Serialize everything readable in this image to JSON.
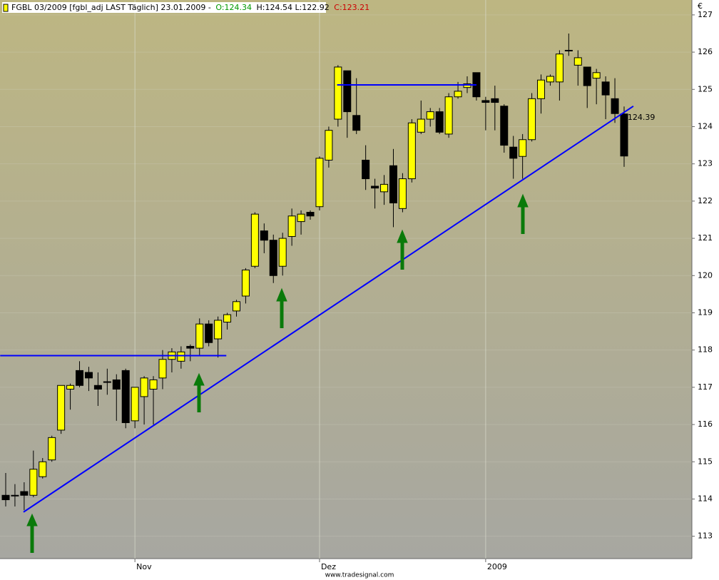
{
  "chart_data": {
    "type": "candlestick",
    "title": "FGBL 03/2009 [fgbl_adj LAST Täglich] 23.01.2009 -",
    "title_open": "O:124.34",
    "title_high_low": "H:124.54 L:122.92",
    "title_close": "C:123.21",
    "currency": "€",
    "footer": "www.tradesignal.com",
    "annotation": "124.39",
    "categories": [
      null,
      null,
      null,
      null,
      null,
      null,
      null,
      null,
      null,
      null,
      null,
      null,
      null,
      null,
      "Nov",
      null,
      null,
      null,
      null,
      null,
      null,
      null,
      null,
      null,
      null,
      null,
      null,
      null,
      null,
      null,
      null,
      null,
      null,
      null,
      "Dez",
      null,
      null,
      null,
      null,
      null,
      null,
      null,
      null,
      null,
      null,
      null,
      null,
      null,
      null,
      null,
      null,
      null,
      "2009",
      null,
      null,
      null,
      null,
      null,
      null,
      null,
      null,
      null,
      null,
      null,
      null,
      null,
      null,
      null
    ],
    "series": [
      {
        "up_color": "#ffff00",
        "down_color": "#000000",
        "open": [
          114.1,
          114.1,
          114.2,
          114.1,
          114.6,
          115.05,
          115.85,
          116.95,
          117.45,
          117.4,
          117.05,
          117.15,
          117.2,
          117.45,
          116.1,
          116.75,
          116.95,
          117.25,
          117.75,
          117.7,
          118.1,
          118.05,
          118.7,
          118.3,
          118.75,
          119.05,
          119.45,
          120.25,
          121.2,
          120.95,
          120.25,
          121.05,
          121.45,
          121.7,
          121.85,
          123.1,
          124.2,
          125.5,
          124.3,
          123.1,
          122.4,
          122.25,
          122.95,
          121.8,
          122.6,
          123.85,
          124.2,
          124.4,
          123.8,
          124.8,
          125.05,
          125.45,
          124.7,
          124.75,
          124.55,
          123.45,
          123.2,
          123.65,
          124.75,
          125.2,
          125.2,
          126.05,
          125.65,
          125.6,
          125.3,
          125.2,
          124.75,
          124.34
        ],
        "high": [
          114.7,
          114.4,
          114.45,
          115.3,
          115.1,
          115.7,
          117.05,
          117.1,
          117.7,
          117.55,
          117.4,
          117.5,
          117.35,
          117.5,
          117.0,
          117.3,
          117.3,
          118.0,
          118.05,
          118.1,
          118.15,
          118.85,
          118.8,
          118.9,
          119.0,
          119.35,
          120.2,
          121.7,
          121.4,
          121.1,
          121.15,
          121.8,
          121.75,
          121.75,
          123.2,
          124.0,
          125.65,
          125.5,
          125.3,
          123.5,
          122.6,
          122.7,
          123.4,
          122.75,
          124.2,
          124.7,
          124.5,
          124.5,
          124.9,
          125.2,
          125.35,
          125.45,
          124.8,
          125.1,
          124.6,
          123.75,
          123.8,
          124.9,
          125.4,
          125.4,
          126.05,
          126.5,
          126.05,
          125.6,
          125.55,
          125.35,
          125.3,
          124.54
        ],
        "low": [
          113.8,
          113.8,
          113.7,
          114.05,
          114.55,
          115.0,
          115.75,
          116.4,
          117.0,
          116.9,
          116.5,
          116.8,
          116.1,
          115.9,
          115.9,
          116.0,
          116.0,
          116.95,
          117.4,
          117.5,
          117.7,
          117.85,
          118.1,
          117.8,
          118.55,
          118.9,
          119.25,
          120.2,
          120.6,
          119.8,
          120.0,
          120.8,
          121.1,
          121.5,
          121.75,
          122.9,
          124.0,
          123.7,
          123.8,
          122.3,
          121.8,
          121.9,
          121.3,
          121.7,
          122.5,
          123.8,
          124.0,
          123.8,
          123.7,
          124.75,
          124.9,
          124.7,
          123.9,
          123.9,
          123.3,
          122.6,
          122.6,
          123.6,
          124.35,
          125.1,
          124.7,
          125.9,
          125.1,
          124.5,
          124.6,
          124.2,
          124.1,
          122.92
        ],
        "close": [
          113.98,
          114.1,
          114.1,
          114.8,
          115.0,
          115.65,
          117.05,
          117.05,
          117.05,
          117.25,
          116.95,
          117.15,
          116.95,
          116.05,
          117.0,
          117.25,
          117.2,
          117.75,
          117.95,
          117.95,
          118.05,
          118.7,
          118.2,
          118.8,
          118.95,
          119.3,
          120.15,
          121.65,
          120.95,
          120.0,
          121.0,
          121.6,
          121.65,
          121.6,
          123.15,
          123.9,
          125.6,
          124.4,
          123.9,
          122.6,
          122.35,
          122.45,
          121.95,
          122.6,
          124.1,
          124.2,
          124.4,
          123.85,
          124.8,
          124.95,
          125.15,
          124.8,
          124.65,
          124.65,
          123.5,
          123.15,
          123.65,
          124.75,
          125.25,
          125.35,
          125.95,
          126.05,
          125.85,
          125.1,
          125.45,
          124.85,
          124.35,
          123.21
        ]
      }
    ],
    "trendlines": [
      {
        "color": "#0000ff",
        "x": [
          1.93,
          68
        ],
        "y": [
          113.65,
          124.55
        ]
      },
      {
        "color": "#0000ff",
        "x": [
          -0.6,
          23.9
        ],
        "y": [
          117.85,
          117.85
        ]
      },
      {
        "color": "#0000ff",
        "x": [
          35.9,
          51
        ],
        "y": [
          125.12,
          125.12
        ]
      }
    ],
    "ylim": [
      112.4,
      127.4
    ],
    "yticks": [
      113,
      114,
      115,
      116,
      117,
      118,
      119,
      120,
      121,
      122,
      123,
      124,
      125,
      126,
      127
    ],
    "grid": true
  }
}
